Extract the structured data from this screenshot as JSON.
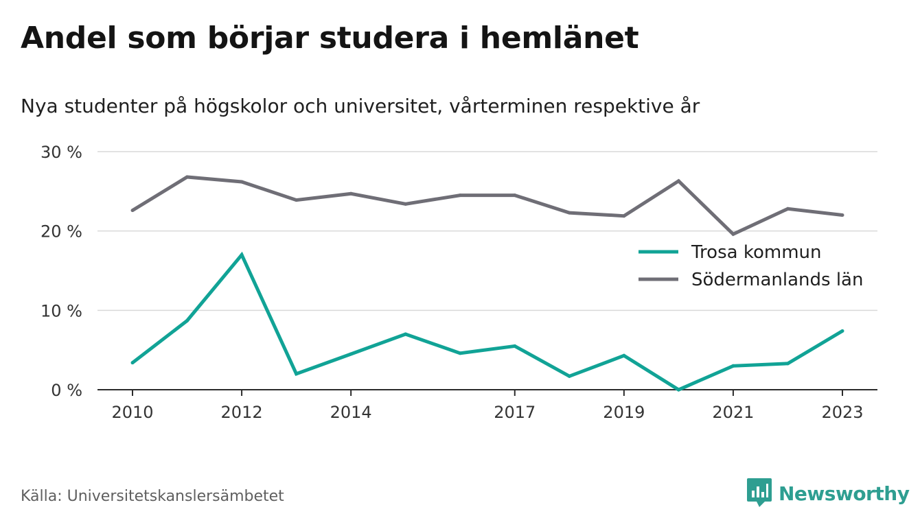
{
  "title": "Andel som börjar studera i hemlänet",
  "subtitle": "Nya studenter på högskolor och universitet, vårterminen respektive år",
  "source": "Källa: Universitetskanslersämbetet",
  "brand": {
    "name": "Newsworthy",
    "icon": "newsworthy-logo-icon",
    "color": "#2e9e91"
  },
  "chart_data": {
    "type": "line",
    "title": "Andel som börjar studera i hemlänet",
    "subtitle": "Nya studenter på högskolor och universitet, vårterminen respektive år",
    "xlabel": "",
    "ylabel": "",
    "x": [
      2010,
      2011,
      2012,
      2013,
      2014,
      2015,
      2016,
      2017,
      2018,
      2019,
      2020,
      2021,
      2022,
      2023
    ],
    "x_tick_values": [
      2010,
      2012,
      2014,
      2017,
      2019,
      2021,
      2023
    ],
    "x_tick_labels": [
      "2010",
      "2012",
      "2014",
      "2017",
      "2019",
      "2021",
      "2023"
    ],
    "ylim": [
      0,
      30
    ],
    "y_tick_values": [
      0,
      10,
      20,
      30
    ],
    "y_tick_labels": [
      "0 %",
      "10 %",
      "20 %",
      "30 %"
    ],
    "grid": true,
    "legend_position": "right",
    "series": [
      {
        "name": "Trosa kommun",
        "color": "#11a396",
        "values": [
          3.4,
          8.7,
          17.0,
          2.0,
          4.5,
          7.0,
          4.6,
          5.5,
          1.7,
          4.3,
          0.0,
          3.0,
          3.3,
          7.4
        ]
      },
      {
        "name": "Södermanlands län",
        "color": "#6f6e76",
        "values": [
          22.6,
          26.8,
          26.2,
          23.9,
          24.7,
          23.4,
          24.5,
          24.5,
          22.3,
          21.9,
          26.3,
          19.6,
          22.8,
          22.0
        ]
      }
    ]
  }
}
